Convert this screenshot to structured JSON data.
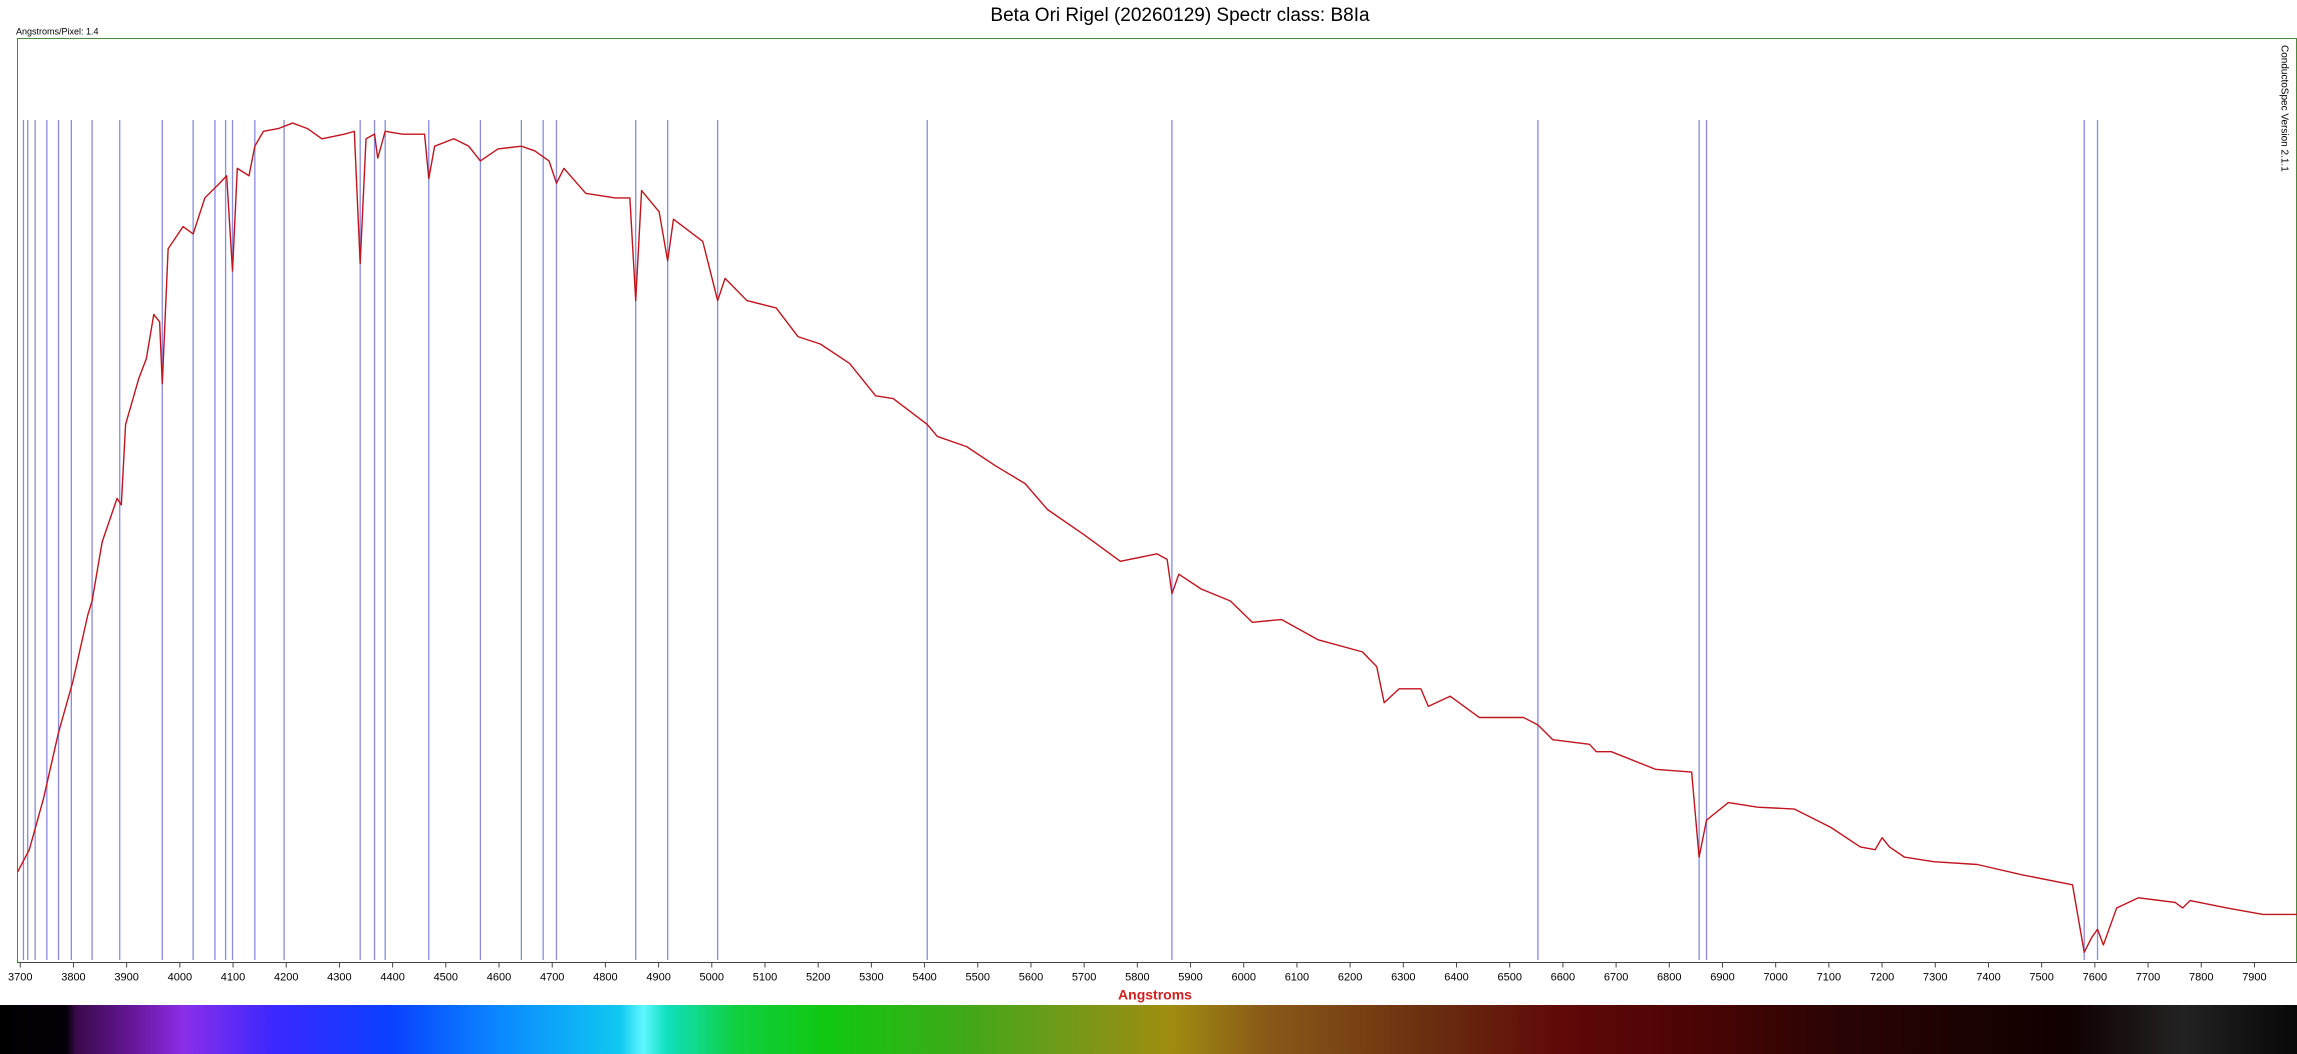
{
  "chart_data": {
    "type": "line",
    "title": "Beta Ori Rigel (20260129) Spectr class: B8Ia",
    "subtitle": "Angstroms/Pixel: 1.4",
    "annotation": "ConductoSpec Version 2.1.1",
    "x_label": "Angstroms",
    "xlim": [
      3695,
      7980
    ],
    "xticks": [
      3700,
      3800,
      3900,
      4000,
      4100,
      4200,
      4300,
      4400,
      4500,
      4600,
      4700,
      4800,
      4900,
      5000,
      5100,
      5200,
      5300,
      5400,
      5500,
      5600,
      5700,
      5800,
      5900,
      6000,
      6100,
      6200,
      6300,
      6400,
      6500,
      6600,
      6700,
      6800,
      6900,
      7000,
      7100,
      7200,
      7300,
      7400,
      7500,
      7600,
      7700,
      7800,
      7900
    ],
    "ylim": [
      0,
      100
    ],
    "grid": false,
    "line_markers": {
      "color": "#8a8ae0",
      "x": [
        3706,
        3714,
        3728,
        3750,
        3772,
        3796,
        3835,
        3887,
        3967,
        4025,
        4066,
        4086,
        4099,
        4141,
        4196,
        4339,
        4366,
        4386,
        4468,
        4565,
        4642,
        4683,
        4708,
        4857,
        4917,
        5011,
        5405,
        5865,
        6553,
        6856,
        6870,
        7580,
        7605
      ]
    },
    "series": [
      {
        "color": "#c0141e",
        "x": [
          3695,
          3717,
          3744,
          3772,
          3799,
          3827,
          3835,
          3854,
          3882,
          3890,
          3898,
          3923,
          3937,
          3951,
          3962,
          3967,
          3978,
          4006,
          4025,
          4047,
          4075,
          4088,
          4099,
          4108,
          4130,
          4141,
          4157,
          4185,
          4212,
          4240,
          4267,
          4309,
          4328,
          4339,
          4350,
          4366,
          4372,
          4386,
          4419,
          4460,
          4468,
          4479,
          4515,
          4543,
          4565,
          4598,
          4642,
          4667,
          4694,
          4708,
          4722,
          4763,
          4818,
          4846,
          4857,
          4868,
          4901,
          4917,
          4928,
          4983,
          5011,
          5025,
          5066,
          5121,
          5162,
          5204,
          5259,
          5308,
          5341,
          5405,
          5424,
          5479,
          5534,
          5589,
          5631,
          5699,
          5768,
          5837,
          5856,
          5865,
          5878,
          5920,
          5975,
          6016,
          6071,
          6140,
          6223,
          6250,
          6264,
          6292,
          6333,
          6347,
          6388,
          6443,
          6526,
          6553,
          6581,
          6650,
          6663,
          6691,
          6774,
          6842,
          6856,
          6870,
          6911,
          6966,
          7035,
          7104,
          7159,
          7187,
          7200,
          7214,
          7242,
          7297,
          7379,
          7462,
          7558,
          7580,
          7594,
          7605,
          7616,
          7641,
          7682,
          7751,
          7765,
          7779,
          7848,
          7916,
          7980
        ],
        "values": [
          9.8,
          12.2,
          17.8,
          24.9,
          30.4,
          37.6,
          39.1,
          45.5,
          50.2,
          49.5,
          58.2,
          63.2,
          65.3,
          70.1,
          69.3,
          62.6,
          77.2,
          79.6,
          78.8,
          82.7,
          84.3,
          85.1,
          74.8,
          85.9,
          85.1,
          88.3,
          89.9,
          90.2,
          90.8,
          90.2,
          89.1,
          89.6,
          89.9,
          75.6,
          89.1,
          89.6,
          87.0,
          89.9,
          89.6,
          89.6,
          84.8,
          88.3,
          89.1,
          88.3,
          86.7,
          88.0,
          88.3,
          87.8,
          86.7,
          84.3,
          85.9,
          83.2,
          82.7,
          82.7,
          71.6,
          83.5,
          81.2,
          75.9,
          80.4,
          78.0,
          71.6,
          74.0,
          71.6,
          70.8,
          67.7,
          66.9,
          64.8,
          61.3,
          61.0,
          58.2,
          56.9,
          55.8,
          53.7,
          51.8,
          49.0,
          46.3,
          43.4,
          44.2,
          43.6,
          39.9,
          42.0,
          40.4,
          39.1,
          36.8,
          37.1,
          34.9,
          33.6,
          32.0,
          28.1,
          29.6,
          29.6,
          27.7,
          28.8,
          26.5,
          26.5,
          25.7,
          24.1,
          23.6,
          22.8,
          22.8,
          20.9,
          20.6,
          11.4,
          15.4,
          17.3,
          16.8,
          16.6,
          14.6,
          12.5,
          12.2,
          13.5,
          12.5,
          11.4,
          10.9,
          10.6,
          9.5,
          8.4,
          1.1,
          2.7,
          3.6,
          1.9,
          5.9,
          7.0,
          6.5,
          5.9,
          6.7,
          5.9,
          5.2,
          5.2
        ]
      }
    ]
  }
}
